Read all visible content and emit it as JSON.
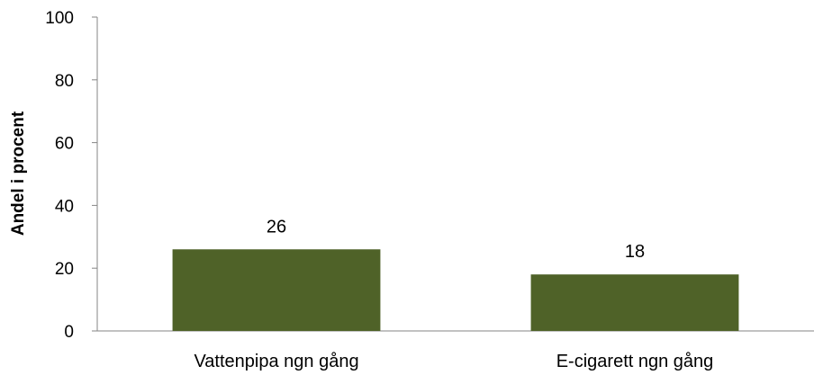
{
  "chart_data": {
    "type": "bar",
    "title": "",
    "xlabel": "",
    "ylabel": "Andel i procent",
    "categories": [
      "Vattenpipa ngn gång",
      "E-cigarett ngn gång"
    ],
    "values": [
      26,
      18
    ],
    "data_labels": [
      "26",
      "18"
    ],
    "ylim": [
      0,
      100
    ],
    "yticks": [
      0,
      20,
      40,
      60,
      80,
      100
    ],
    "ytick_labels": [
      "0",
      "20",
      "40",
      "60",
      "80",
      "100"
    ],
    "grid": false,
    "legend": "none",
    "colors": {
      "bar": "#4f6228",
      "axis": "#868686"
    }
  }
}
